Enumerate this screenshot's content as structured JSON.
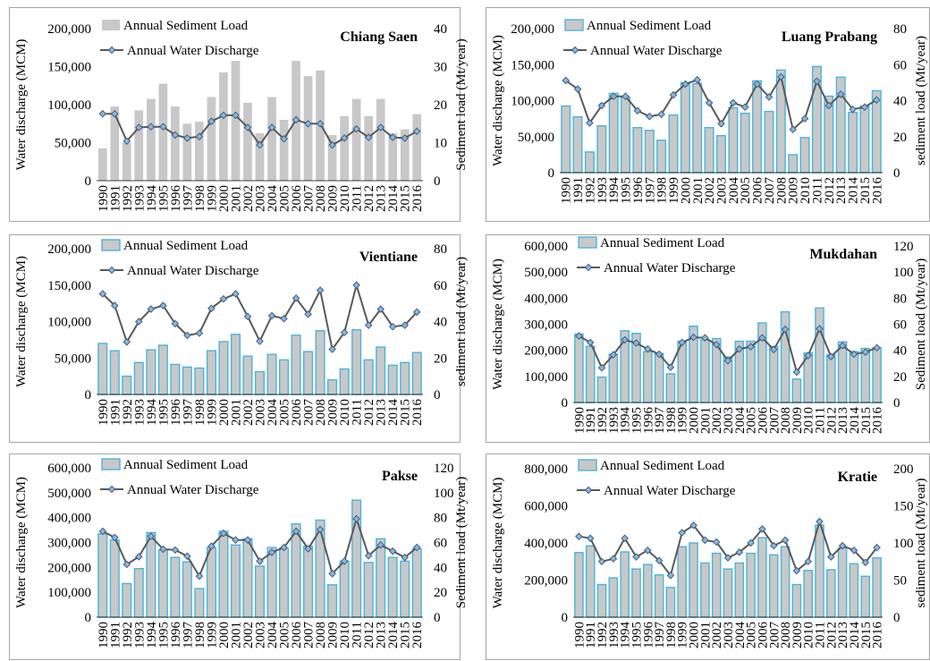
{
  "years": [
    "1990",
    "1991",
    "1992",
    "1993",
    "1994",
    "1995",
    "1996",
    "1997",
    "1998",
    "1999",
    "2000",
    "2001",
    "2002",
    "2003",
    "2004",
    "2005",
    "2006",
    "2007",
    "2008",
    "2009",
    "2010",
    "2011",
    "2012",
    "2013",
    "2014",
    "2015",
    "2016"
  ],
  "legend": {
    "bar_label": "Annual Sediment Load",
    "line_label": "Annual Water Discharge"
  },
  "colors": {
    "bar_fill": "#c8c8c8",
    "bar_edge": "#4bb3dc",
    "line": "#595959",
    "marker_fill": "#8eb6d6",
    "marker_edge": "#3f5f8a",
    "panel_border": "#a6a6a6"
  },
  "chart_data": [
    {
      "type": "bar+line",
      "title": "Chiang Saen",
      "ylabel_left": "Water discharge (MCM)",
      "ylabel_right": "Sediment load (Mt/year)",
      "left_ticks": [
        "0",
        "50,000",
        "100,000",
        "150,000",
        "200,000"
      ],
      "right_ticks": [
        "0",
        "10",
        "20",
        "30",
        "40"
      ],
      "ylim_left": [
        0,
        200000
      ],
      "ylim_right": [
        0,
        40
      ],
      "bar_edge": false,
      "sediment": [
        8.5,
        19.5,
        10,
        18.5,
        21.5,
        25.5,
        19.5,
        15,
        15.5,
        22,
        28.5,
        31.5,
        20.5,
        12.5,
        22,
        16,
        31.5,
        27.5,
        29,
        12,
        17,
        21.5,
        17,
        21.5,
        12.5,
        13.5,
        17.5
      ],
      "discharge": [
        88000,
        88000,
        52000,
        70000,
        71000,
        71000,
        60000,
        56000,
        58000,
        78000,
        86000,
        86000,
        70000,
        47000,
        70000,
        55000,
        80000,
        75000,
        75000,
        47000,
        56000,
        68000,
        57000,
        70000,
        57000,
        56000,
        65000
      ],
      "legend_pos": "top-left"
    },
    {
      "type": "bar+line",
      "title": "Luang Prabang",
      "ylabel_left": "Water discharge (MCM)",
      "ylabel_right": "sediment load (Mt/year)",
      "left_ticks": [
        "0",
        "50,000",
        "100,000",
        "150,000",
        "200,000"
      ],
      "right_ticks": [
        "0",
        "20",
        "40",
        "60",
        "80"
      ],
      "ylim_left": [
        0,
        200000
      ],
      "ylim_right": [
        0,
        80
      ],
      "bar_edge": true,
      "sediment": [
        37,
        31,
        11.5,
        26,
        44,
        42,
        25,
        23.5,
        18,
        32,
        50,
        49.5,
        25,
        20.5,
        36,
        33,
        51,
        34,
        57,
        10,
        19.5,
        59,
        42.5,
        53,
        33.5,
        37,
        45.5
      ],
      "discharge": [
        128000,
        116000,
        69000,
        93000,
        106000,
        106000,
        86000,
        78000,
        81000,
        108000,
        123000,
        129000,
        97000,
        68000,
        97000,
        91000,
        123000,
        105000,
        133000,
        60000,
        75000,
        127000,
        93000,
        109000,
        88000,
        91000,
        101000
      ],
      "legend_pos": "top-left"
    },
    {
      "type": "bar+line",
      "title": "Vientiane",
      "ylabel_left": "Water discharge (MCM)",
      "ylabel_right": "sediment load (Mt/year)",
      "left_ticks": [
        "0",
        "50,000",
        "100,000",
        "150,000",
        "200,000"
      ],
      "right_ticks": [
        "0",
        "20",
        "40",
        "60",
        "80"
      ],
      "ylim_left": [
        0,
        200000
      ],
      "ylim_right": [
        0,
        80
      ],
      "bar_edge": true,
      "sediment": [
        28,
        24,
        10,
        17.5,
        24.5,
        27,
        16.5,
        15,
        14.5,
        24,
        29,
        33,
        21,
        12.5,
        22,
        19,
        32.5,
        23.5,
        35,
        8,
        14,
        35.5,
        19,
        26,
        16,
        17.5,
        23
      ],
      "discharge": [
        138000,
        122000,
        72000,
        100000,
        117000,
        122000,
        97000,
        81000,
        84000,
        118000,
        131000,
        138000,
        107000,
        73000,
        108000,
        104000,
        132000,
        110000,
        143000,
        62000,
        85000,
        150000,
        95000,
        117000,
        93000,
        95000,
        113000
      ],
      "legend_pos": "top-left"
    },
    {
      "type": "bar+line",
      "title": "Mukdahan",
      "ylabel_left": "Water discharge (MCM)",
      "ylabel_right": "Sediment load (Mt/year)",
      "left_ticks": [
        "0",
        "100,000",
        "200,000",
        "300,000",
        "400,000",
        "500,000",
        "600,000"
      ],
      "right_ticks": [
        "0",
        "20",
        "40",
        "60",
        "80",
        "100",
        "120"
      ],
      "ylim_left": [
        0,
        600000
      ],
      "ylim_right": [
        0,
        120
      ],
      "bar_edge": true,
      "sediment": [
        52.5,
        43,
        19.5,
        37,
        55,
        53,
        39,
        37.5,
        22,
        47,
        58.5,
        48,
        49,
        35,
        47,
        47,
        61,
        43,
        69.5,
        18,
        38,
        72.5,
        36.5,
        46.5,
        39,
        41.5,
        42
      ],
      "discharge": [
        255000,
        230000,
        133000,
        183000,
        240000,
        228000,
        205000,
        185000,
        135000,
        230000,
        250000,
        248000,
        222000,
        160000,
        205000,
        214000,
        248000,
        203000,
        280000,
        117000,
        180000,
        283000,
        176000,
        218000,
        185000,
        193000,
        210000
      ],
      "legend_pos": "top-left"
    },
    {
      "type": "bar+line",
      "title": "Pakse",
      "ylabel_left": "Water discharge (MCM)",
      "ylabel_right": "Sediment load (Mt/year)",
      "left_ticks": [
        "0",
        "100,000",
        "200,000",
        "300,000",
        "400,000",
        "500,000",
        "600,000"
      ],
      "right_ticks": [
        "0",
        "20",
        "40",
        "60",
        "80",
        "100",
        "120"
      ],
      "ylim_left": [
        0,
        600000
      ],
      "ylim_right": [
        0,
        120
      ],
      "bar_edge": true,
      "sediment": [
        67,
        62,
        27,
        39,
        68,
        54,
        48,
        44.5,
        23,
        56,
        69,
        58,
        63,
        41,
        56,
        55.5,
        75,
        57,
        78,
        26,
        45,
        94,
        44,
        63,
        48,
        45,
        55
      ],
      "discharge": [
        345000,
        320000,
        212000,
        243000,
        325000,
        273000,
        270000,
        245000,
        165000,
        285000,
        337000,
        310000,
        310000,
        225000,
        260000,
        280000,
        345000,
        275000,
        352000,
        175000,
        225000,
        395000,
        247000,
        290000,
        265000,
        240000,
        280000
      ],
      "legend_pos": "top-left"
    },
    {
      "type": "bar+line",
      "title": "Kratie",
      "ylabel_left": "Water discharge (MCM)",
      "ylabel_right": "sediment load (Mt/year)",
      "left_ticks": [
        "0",
        "200,000",
        "400,000",
        "600,000",
        "800,000"
      ],
      "right_ticks": [
        "0",
        "50",
        "100",
        "150",
        "200"
      ],
      "ylim_left": [
        0,
        800000
      ],
      "ylim_right": [
        0,
        200
      ],
      "bar_edge": true,
      "sediment": [
        87,
        96,
        44,
        53,
        88,
        65,
        71,
        57,
        40,
        95,
        100,
        73,
        86,
        65,
        73,
        86,
        107,
        84,
        95,
        44,
        63,
        124,
        64,
        93,
        72,
        55,
        80
      ],
      "discharge": [
        435000,
        425000,
        300000,
        315000,
        425000,
        325000,
        360000,
        305000,
        225000,
        455000,
        495000,
        415000,
        405000,
        320000,
        350000,
        400000,
        475000,
        385000,
        415000,
        250000,
        300000,
        515000,
        325000,
        385000,
        360000,
        295000,
        375000
      ],
      "legend_pos": "top-left"
    }
  ]
}
